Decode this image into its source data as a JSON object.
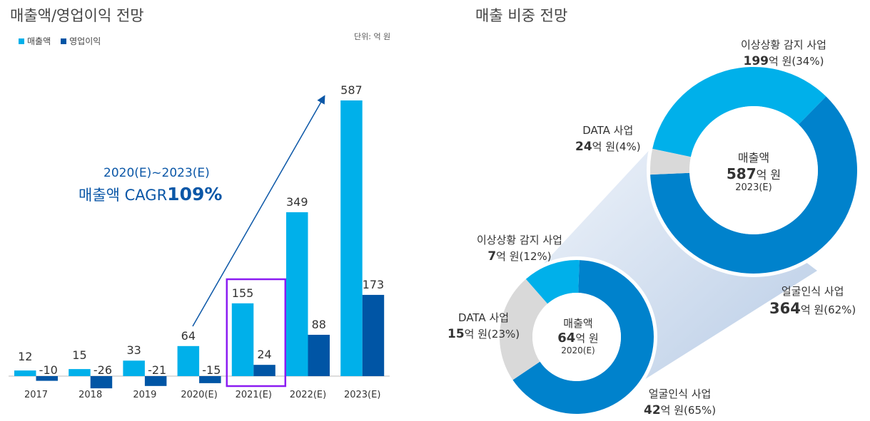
{
  "chart_data": [
    {
      "type": "bar",
      "title": "매출액/영업이익 전망",
      "unit_label": "단위: 억 원",
      "categories": [
        "2017",
        "2018",
        "2019",
        "2020(E)",
        "2021(E)",
        "2022(E)",
        "2023(E)"
      ],
      "series": [
        {
          "name": "매출액",
          "color": "#00b0ea",
          "values": [
            12,
            15,
            33,
            64,
            155,
            349,
            587
          ]
        },
        {
          "name": "영업이익",
          "color": "#0055a5",
          "values": [
            -10,
            -26,
            -21,
            -15,
            24,
            88,
            173
          ]
        }
      ],
      "legend": "top-left",
      "highlight_category": "2021(E)",
      "highlight_color": "#8b1cf2",
      "annotation": {
        "line1": "2020(E)~2023(E)",
        "line2_prefix": "매출액 CAGR",
        "line2_value": "109%",
        "color": "#0b57a7",
        "arrow_from": "2020(E)",
        "arrow_to": "2023(E)"
      }
    },
    {
      "type": "pie",
      "title": "매출 비중 전망",
      "donuts": [
        {
          "center": [
            "매출액",
            "587",
            "억 원",
            "2023(E)"
          ],
          "slices": [
            {
              "name": "이상상황 감지 사업",
              "value": 199,
              "unit": "억 원",
              "pct": "(34%)",
              "percent": 34,
              "color": "#00b0ea"
            },
            {
              "name": "얼굴인식 사업",
              "value": 364,
              "unit": "억 원",
              "pct": "(62%)",
              "percent": 62,
              "color": "#0082cc"
            },
            {
              "name": "DATA 사업",
              "value": 24,
              "unit": "억 원",
              "pct": "(4%)",
              "percent": 4,
              "color": "#d9d9d9"
            }
          ]
        },
        {
          "center": [
            "매출액",
            "64",
            "억 원",
            "2020(E)"
          ],
          "slices": [
            {
              "name": "얼굴인식 사업",
              "value": 42,
              "unit": "억 원",
              "pct": "(65%)",
              "percent": 65,
              "color": "#0082cc"
            },
            {
              "name": "DATA 사업",
              "value": 15,
              "unit": "억 원",
              "pct": "(23%)",
              "percent": 23,
              "color": "#d9d9d9"
            },
            {
              "name": "이상상황 감지 사업",
              "value": 7,
              "unit": "억 원",
              "pct": "(12%)",
              "percent": 12,
              "color": "#00b0ea"
            }
          ]
        }
      ]
    }
  ]
}
